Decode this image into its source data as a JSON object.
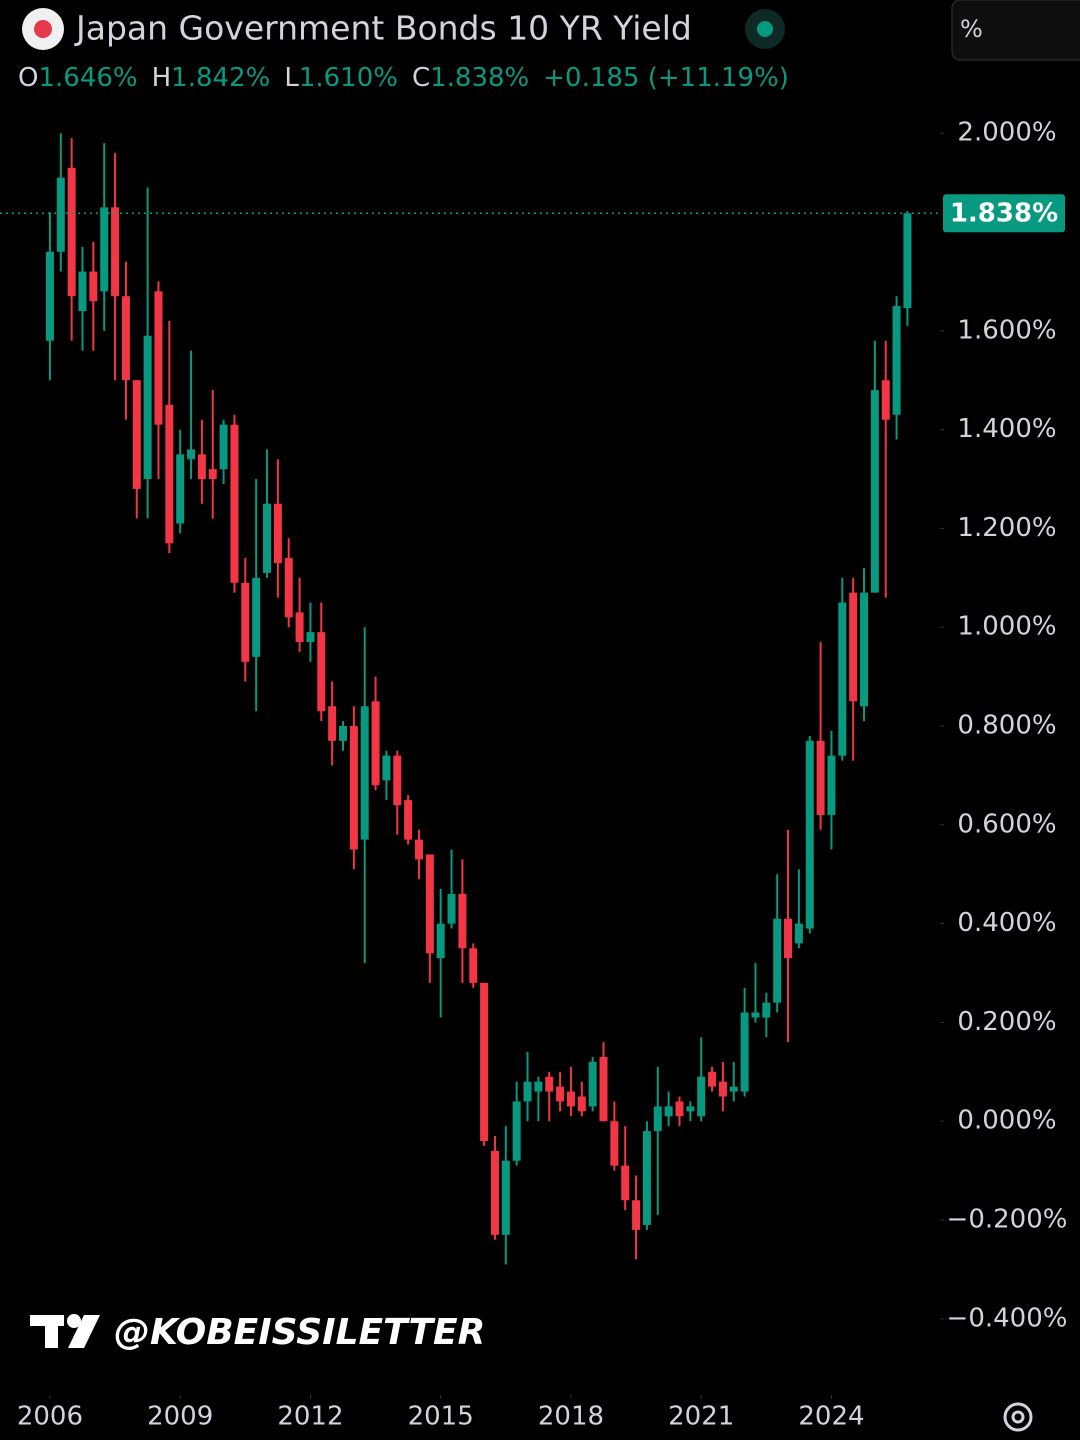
{
  "chart_data": {
    "type": "candlestick",
    "title": "Japan Government Bonds 10 YR Yield",
    "ohlc_legend": [
      {
        "key": "O",
        "value": "1.646%"
      },
      {
        "key": "H",
        "value": "1.842%"
      },
      {
        "key": "L",
        "value": "1.610%"
      },
      {
        "key": "C",
        "value": "1.838%"
      }
    ],
    "change": "+0.185 (+11.19%)",
    "unit_button": "%",
    "watermark": "@KOBEISSILETTER",
    "last_price": {
      "value": 1.838,
      "label": "1.838%"
    },
    "up_color": "#089981",
    "down_color": "#f23645",
    "x": [
      2006,
      2006.25,
      2006.5,
      2006.75,
      2007,
      2007.25,
      2007.5,
      2007.75,
      2008,
      2008.25,
      2008.5,
      2008.75,
      2009,
      2009.25,
      2009.5,
      2009.75,
      2010,
      2010.25,
      2010.5,
      2010.75,
      2011,
      2011.25,
      2011.5,
      2011.75,
      2012,
      2012.25,
      2012.5,
      2012.75,
      2013,
      2013.25,
      2013.5,
      2013.75,
      2014,
      2014.25,
      2014.5,
      2014.75,
      2015,
      2015.25,
      2015.5,
      2015.75,
      2016,
      2016.25,
      2016.5,
      2016.75,
      2017,
      2017.25,
      2017.5,
      2017.75,
      2018,
      2018.25,
      2018.5,
      2018.75,
      2019,
      2019.25,
      2019.5,
      2019.75,
      2020,
      2020.25,
      2020.5,
      2020.75,
      2021,
      2021.25,
      2021.5,
      2021.75,
      2022,
      2022.25,
      2022.5,
      2022.75,
      2023,
      2023.25,
      2023.5,
      2023.75,
      2024,
      2024.25,
      2024.5,
      2024.75,
      2025,
      2025.25,
      2025.5,
      2025.75
    ],
    "open": [
      1.58,
      1.76,
      1.93,
      1.64,
      1.72,
      1.68,
      1.85,
      1.67,
      1.5,
      1.3,
      1.68,
      1.45,
      1.21,
      1.34,
      1.35,
      1.32,
      1.32,
      1.41,
      1.09,
      0.94,
      1.11,
      1.25,
      1.14,
      1.03,
      0.97,
      0.99,
      0.84,
      0.77,
      0.8,
      0.57,
      0.85,
      0.69,
      0.74,
      0.65,
      0.57,
      0.54,
      0.33,
      0.4,
      0.46,
      0.35,
      0.28,
      -0.06,
      -0.23,
      -0.08,
      0.04,
      0.06,
      0.09,
      0.07,
      0.06,
      0.05,
      0.03,
      0.13,
      0.0,
      -0.09,
      -0.16,
      -0.21,
      -0.02,
      0.01,
      0.04,
      0.02,
      0.01,
      0.1,
      0.08,
      0.06,
      0.06,
      0.21,
      0.21,
      0.24,
      0.41,
      0.36,
      0.39,
      0.77,
      0.62,
      0.74,
      1.07,
      0.84,
      1.07,
      1.5,
      1.43,
      1.646
    ],
    "high": [
      1.84,
      2.0,
      1.99,
      1.77,
      1.78,
      1.98,
      1.96,
      1.74,
      1.5,
      1.89,
      1.7,
      1.62,
      1.4,
      1.56,
      1.42,
      1.48,
      1.42,
      1.43,
      1.14,
      1.3,
      1.36,
      1.34,
      1.18,
      1.1,
      1.05,
      1.05,
      0.89,
      0.81,
      0.84,
      1.0,
      0.9,
      0.75,
      0.75,
      0.66,
      0.59,
      0.54,
      0.47,
      0.55,
      0.53,
      0.36,
      0.28,
      -0.03,
      -0.01,
      0.08,
      0.14,
      0.09,
      0.1,
      0.1,
      0.11,
      0.08,
      0.13,
      0.16,
      0.04,
      -0.01,
      -0.11,
      0.0,
      0.11,
      0.06,
      0.05,
      0.04,
      0.17,
      0.11,
      0.12,
      0.12,
      0.27,
      0.32,
      0.26,
      0.5,
      0.59,
      0.51,
      0.78,
      0.97,
      0.79,
      1.1,
      1.1,
      1.12,
      1.58,
      1.58,
      1.67,
      1.842
    ],
    "low": [
      1.5,
      1.72,
      1.58,
      1.56,
      1.56,
      1.6,
      1.5,
      1.42,
      1.22,
      1.22,
      1.3,
      1.15,
      1.19,
      1.3,
      1.25,
      1.22,
      1.29,
      1.07,
      0.89,
      0.83,
      1.1,
      1.06,
      1.0,
      0.95,
      0.93,
      0.81,
      0.72,
      0.75,
      0.51,
      0.32,
      0.67,
      0.65,
      0.58,
      0.56,
      0.49,
      0.28,
      0.21,
      0.39,
      0.28,
      0.27,
      -0.05,
      -0.24,
      -0.29,
      -0.09,
      0.0,
      0.0,
      0.0,
      0.02,
      0.01,
      0.01,
      0.02,
      0.0,
      -0.1,
      -0.18,
      -0.28,
      -0.22,
      -0.19,
      -0.01,
      -0.01,
      0.0,
      0.0,
      0.06,
      0.02,
      0.04,
      0.05,
      0.2,
      0.17,
      0.22,
      0.16,
      0.35,
      0.38,
      0.59,
      0.55,
      0.73,
      0.73,
      0.81,
      1.07,
      1.06,
      1.38,
      1.61
    ],
    "close": [
      1.76,
      1.91,
      1.67,
      1.72,
      1.66,
      1.85,
      1.67,
      1.5,
      1.28,
      1.59,
      1.41,
      1.17,
      1.35,
      1.36,
      1.3,
      1.3,
      1.41,
      1.09,
      0.93,
      1.1,
      1.25,
      1.13,
      1.02,
      0.97,
      0.99,
      0.83,
      0.77,
      0.8,
      0.55,
      0.84,
      0.68,
      0.74,
      0.64,
      0.57,
      0.53,
      0.34,
      0.4,
      0.46,
      0.35,
      0.28,
      -0.04,
      -0.23,
      -0.08,
      0.04,
      0.08,
      0.08,
      0.06,
      0.04,
      0.03,
      0.02,
      0.12,
      0.0,
      -0.09,
      -0.16,
      -0.22,
      -0.02,
      0.03,
      0.03,
      0.01,
      0.03,
      0.09,
      0.07,
      0.05,
      0.07,
      0.22,
      0.22,
      0.24,
      0.41,
      0.33,
      0.4,
      0.77,
      0.62,
      0.74,
      1.05,
      0.85,
      1.07,
      1.48,
      1.42,
      1.65,
      1.838
    ],
    "xlim": [
      2004.85,
      2026.5
    ],
    "xticks": [
      2006,
      2009,
      2012,
      2015,
      2018,
      2021,
      2024
    ],
    "ylim": [
      -0.534,
      2.047
    ],
    "yticks": [
      {
        "value": -0.4,
        "label": "−0.400%"
      },
      {
        "value": -0.2,
        "label": "−0.200%"
      },
      {
        "value": 0,
        "label": "0.000%"
      },
      {
        "value": 0.2,
        "label": "0.200%"
      },
      {
        "value": 0.4,
        "label": "0.400%"
      },
      {
        "value": 0.6,
        "label": "0.600%"
      },
      {
        "value": 0.8,
        "label": "0.800%"
      },
      {
        "value": 1.0,
        "label": "1.000%"
      },
      {
        "value": 1.2,
        "label": "1.200%"
      },
      {
        "value": 1.4,
        "label": "1.400%"
      },
      {
        "value": 1.6,
        "label": "1.600%"
      },
      {
        "value": 2.0,
        "label": "2.000%"
      }
    ]
  }
}
